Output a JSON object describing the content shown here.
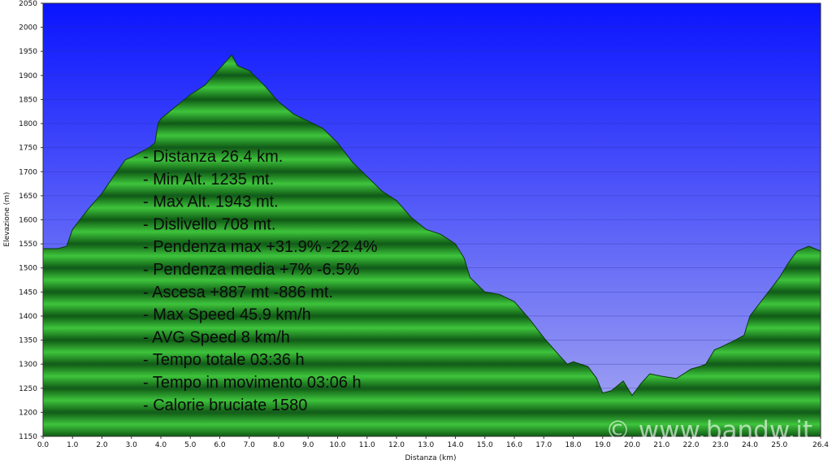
{
  "chart_data": {
    "type": "area",
    "xlabel": "Distanza   (km)",
    "ylabel": "Elevazione (m)",
    "xlim": [
      0,
      26.4
    ],
    "ylim": [
      1150,
      2050
    ],
    "x_ticks": [
      "0.0",
      "1.0",
      "2.0",
      "3.0",
      "4.0",
      "5.0",
      "6.0",
      "7.0",
      "8.0",
      "9.0",
      "10.0",
      "11.0",
      "12.0",
      "13.0",
      "14.0",
      "15.0",
      "16.0",
      "17.0",
      "18.0",
      "19.0",
      "20.0",
      "21.0",
      "22.0",
      "23.0",
      "24.0",
      "25.0",
      "26.4"
    ],
    "y_ticks": [
      "1150",
      "1200",
      "1250",
      "1300",
      "1350",
      "1400",
      "1450",
      "1500",
      "1550",
      "1600",
      "1650",
      "1700",
      "1750",
      "1800",
      "1850",
      "1900",
      "1950",
      "2000",
      "2050"
    ],
    "series": [
      {
        "x": [
          0,
          0.5,
          0.8,
          1.0,
          1.5,
          2.0,
          2.5,
          2.8,
          3.0,
          3.3,
          3.6,
          3.8,
          3.9,
          4.0,
          4.5,
          5.0,
          5.5,
          6.0,
          6.3,
          6.4,
          6.6,
          7.0,
          7.5,
          8.0,
          8.5,
          9.0,
          9.5,
          10.0,
          10.5,
          11.0,
          11.5,
          12.0,
          12.5,
          13.0,
          13.5,
          14.0,
          14.3,
          14.5,
          15.0,
          15.5,
          16.0,
          16.5,
          17.0,
          17.5,
          17.8,
          18.0,
          18.5,
          18.8,
          19.0,
          19.3,
          19.7,
          20.0,
          20.3,
          20.6,
          21.0,
          21.5,
          22.0,
          22.3,
          22.5,
          22.8,
          23.0,
          23.5,
          23.8,
          24.0,
          24.5,
          25.0,
          25.3,
          25.6,
          26.0,
          26.4
        ],
        "y": [
          1540,
          1540,
          1545,
          1580,
          1620,
          1655,
          1700,
          1725,
          1730,
          1740,
          1750,
          1760,
          1800,
          1810,
          1835,
          1860,
          1880,
          1915,
          1935,
          1943,
          1920,
          1910,
          1880,
          1845,
          1820,
          1805,
          1790,
          1760,
          1720,
          1690,
          1660,
          1640,
          1605,
          1580,
          1570,
          1550,
          1520,
          1480,
          1450,
          1445,
          1430,
          1395,
          1355,
          1320,
          1300,
          1305,
          1295,
          1270,
          1240,
          1245,
          1265,
          1235,
          1260,
          1280,
          1275,
          1270,
          1290,
          1295,
          1300,
          1330,
          1335,
          1350,
          1360,
          1400,
          1440,
          1480,
          1510,
          1535,
          1545,
          1535
        ]
      }
    ],
    "annotations": [
      "- Distanza 26.4 km.",
      "- Min Alt. 1235 mt.",
      "- Max Alt. 1943 mt.",
      "- Dislivello 708 mt.",
      "- Pendenza max +31.9% -22.4%",
      "- Pendenza media +7% -6.5%",
      "- Ascesa +887 mt -886 mt.",
      "- Max Speed 45.9 km/h",
      "- AVG Speed 8 km/h",
      "- Tempo totale 03:36 h",
      "- Tempo in movimento 03:06 h",
      "- Calorie bruciate 1580"
    ],
    "watermark": "© www.bandw.it",
    "grid": true,
    "colors": {
      "sky_top": "#0a14ff",
      "sky_bottom": "#a8aaf0",
      "terrain_light": "#3ec43c",
      "terrain_dark": "#0f5a14"
    }
  }
}
